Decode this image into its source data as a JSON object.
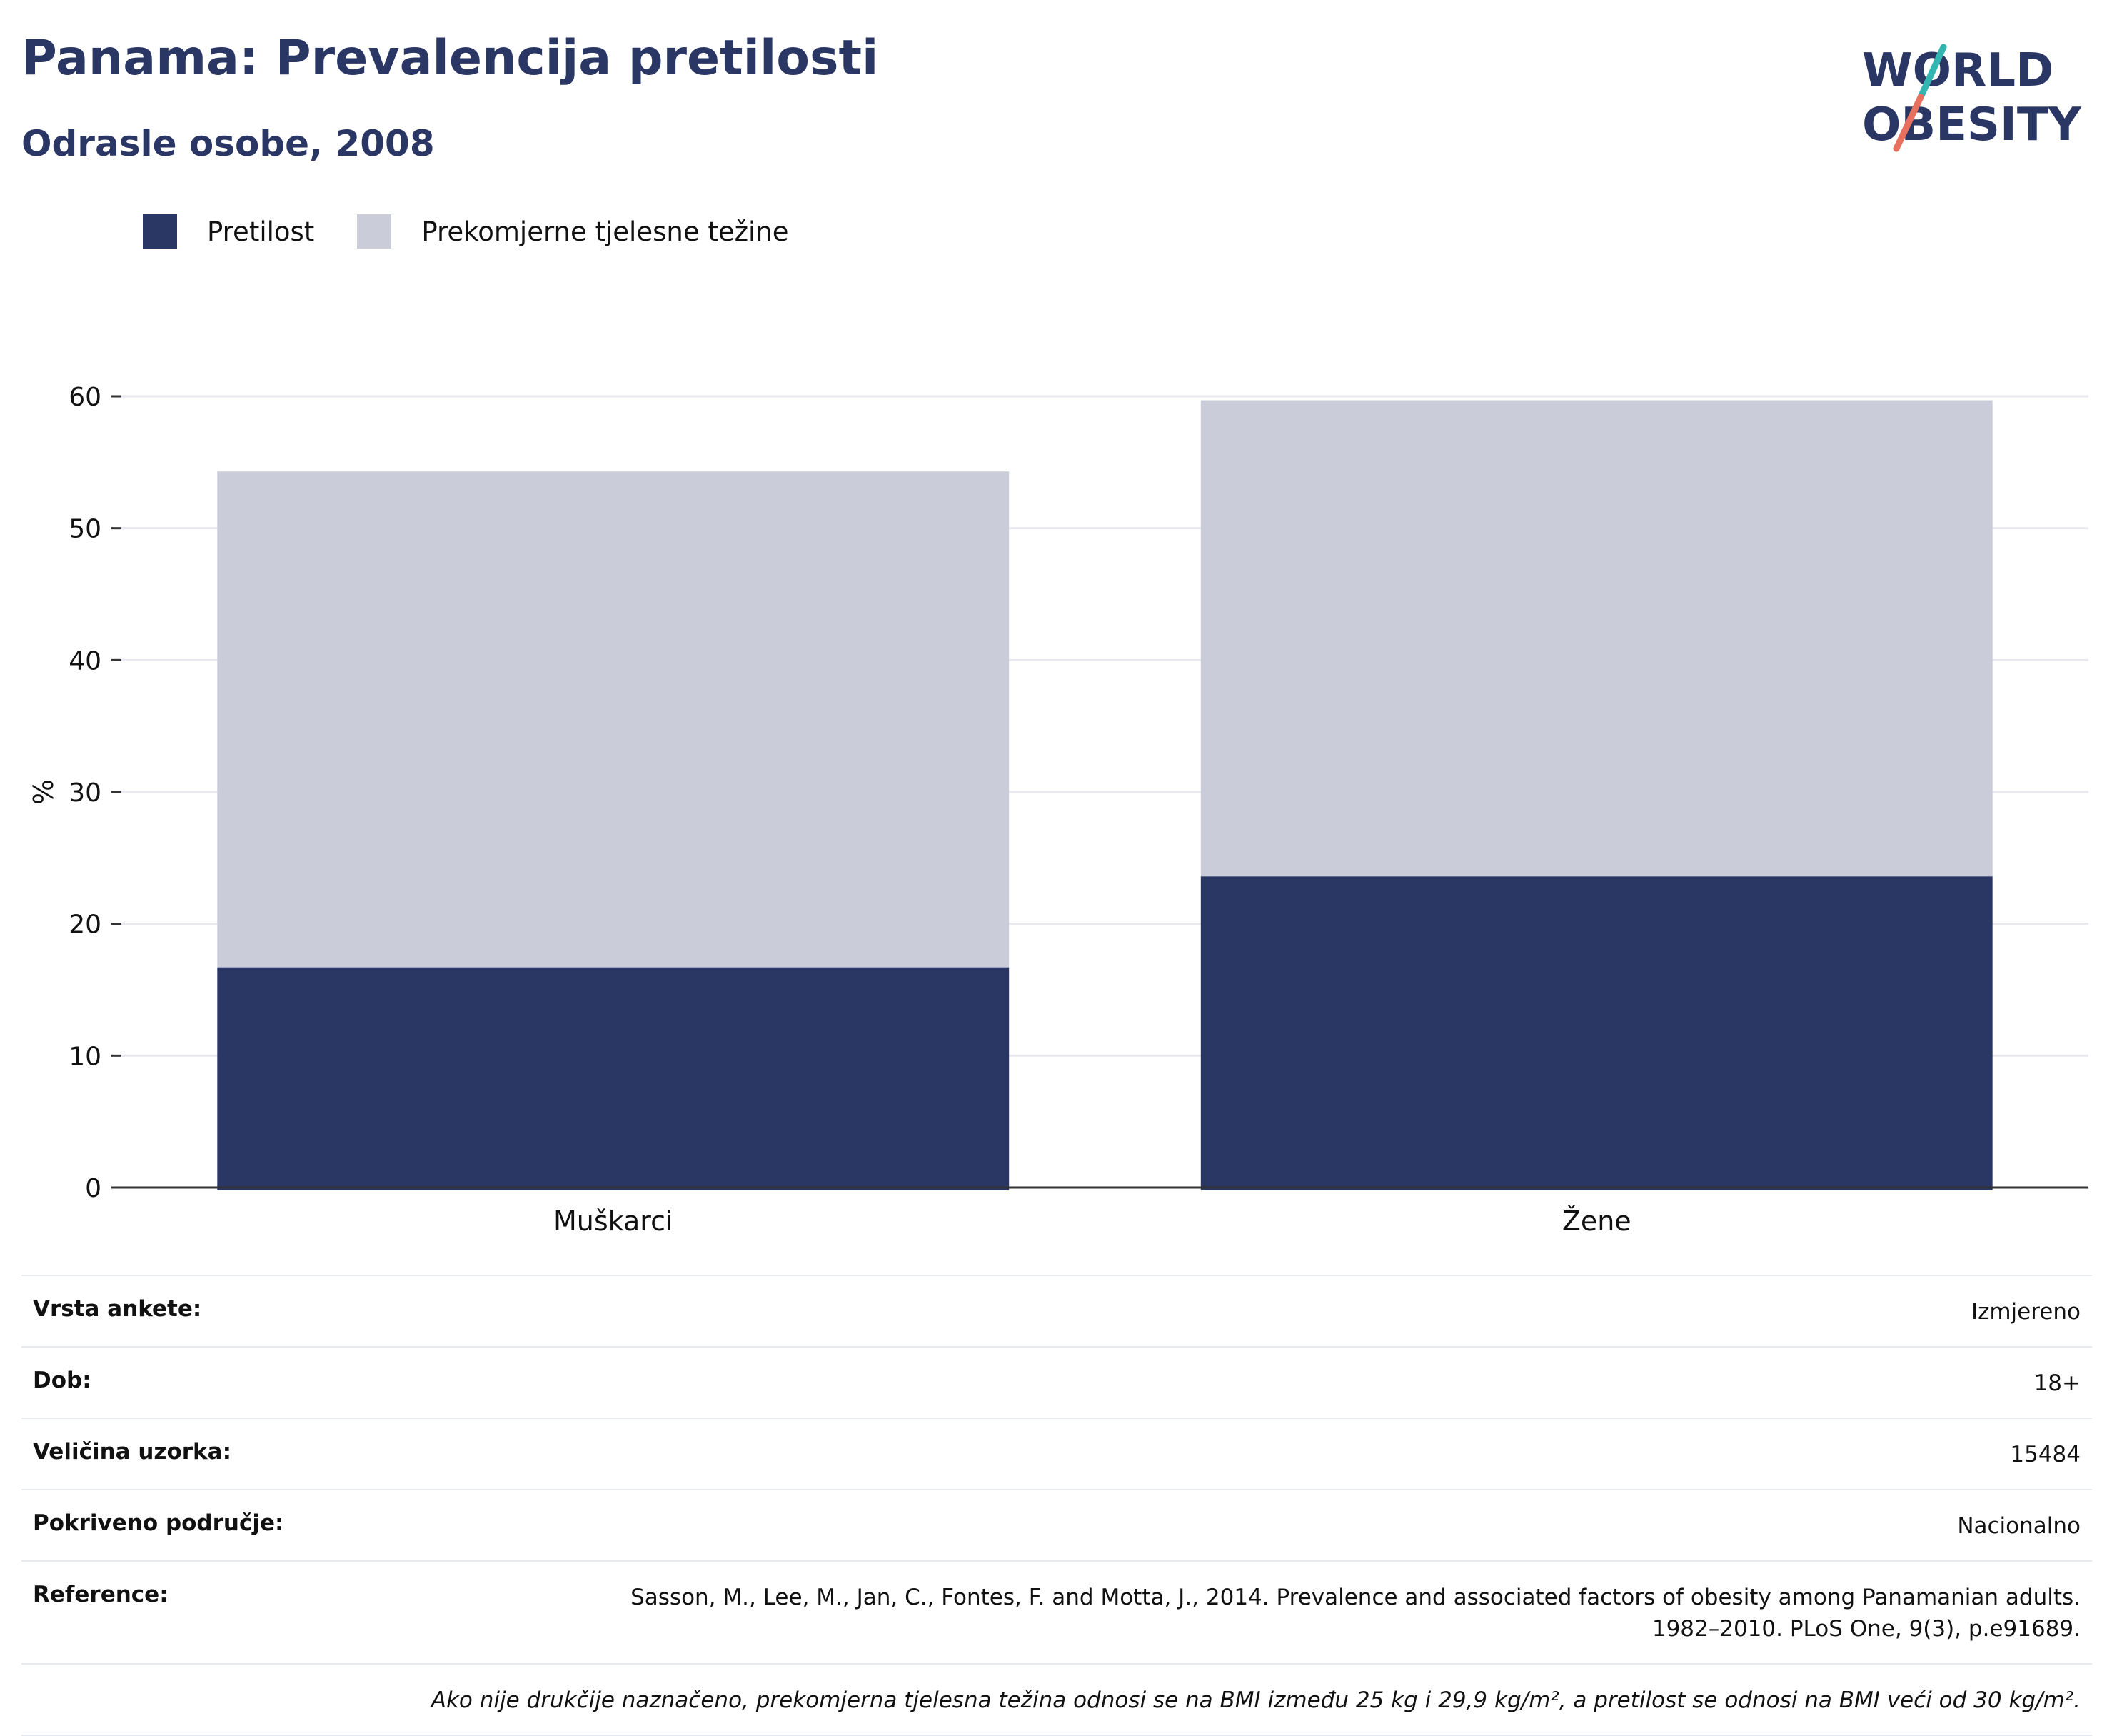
{
  "header": {
    "title": "Panama: Prevalencija pretilosti",
    "subtitle": "Odrasle osobe, 2008",
    "logo_line1": "WORLD",
    "logo_line2": "OBESITY"
  },
  "colors": {
    "obesity": "#2a3664",
    "overweight": "#cacdd9",
    "title": "#2a3664",
    "logo_teal": "#33b5b2",
    "logo_red": "#e8705e"
  },
  "chart_data": {
    "type": "bar",
    "stacked": true,
    "categories": [
      "Muškarci",
      "Žene"
    ],
    "series": [
      {
        "name": "Pretilost",
        "values": [
          16.7,
          23.6
        ]
      },
      {
        "name": "Prekomjerne tjelesne težine",
        "values": [
          37.6,
          36.1
        ]
      }
    ],
    "ylabel": "%",
    "xlabel": "",
    "ylim": [
      0,
      60
    ],
    "yticks": [
      0,
      10,
      20,
      30,
      40,
      50,
      60
    ],
    "grid": true,
    "legend_position": "top-left"
  },
  "info": [
    {
      "label": "Vrsta ankete:",
      "value": "Izmjereno"
    },
    {
      "label": "Dob:",
      "value": "18+"
    },
    {
      "label": "Veličina uzorka:",
      "value": "15484"
    },
    {
      "label": "Pokriveno područje:",
      "value": "Nacionalno"
    },
    {
      "label": "Reference:",
      "value": "Sasson, M., Lee, M., Jan, C., Fontes, F. and Motta, J., 2014. Prevalence and associated factors of obesity among Panamanian adults. 1982–2010. PLoS One, 9(3), p.e91689."
    }
  ],
  "footnote": "Ako nije drukčije naznačeno, prekomjerna tjelesna težina odnosi se na BMI između 25 kg i 29,9 kg/m², a pretilost se odnosi na BMI veći od 30 kg/m²."
}
